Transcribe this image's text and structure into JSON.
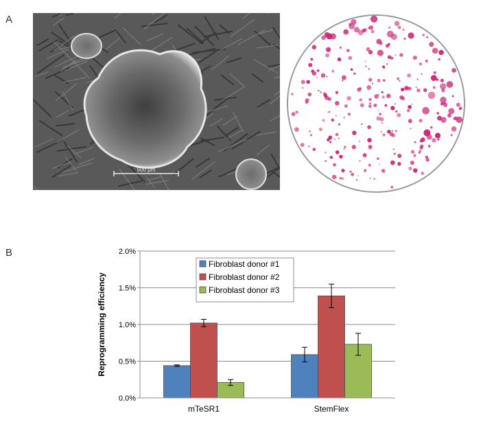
{
  "panels": {
    "a_label": "A",
    "b_label": "B",
    "scale_bar_text": "500 µm"
  },
  "colors": {
    "micrograph_bg": "#595959",
    "colony_stain": "#cc2a78",
    "series": [
      "#4f81bd",
      "#c0504d",
      "#9bbb59"
    ]
  },
  "chart_data": {
    "type": "bar",
    "categories": [
      "mTeSR1",
      "StemFlex"
    ],
    "series": [
      {
        "name": "Fibroblast donor #1",
        "values": [
          0.44,
          0.59
        ],
        "errors": [
          0.01,
          0.1
        ]
      },
      {
        "name": "Fibroblast donor #2",
        "values": [
          1.02,
          1.39
        ],
        "errors": [
          0.05,
          0.16
        ]
      },
      {
        "name": "Fibroblast donor #3",
        "values": [
          0.21,
          0.73
        ],
        "errors": [
          0.04,
          0.15
        ]
      }
    ],
    "ylabel": "Reprogramming efficiency",
    "xlabel": "",
    "ylim": [
      0,
      2.0
    ],
    "yticks": [
      0,
      0.5,
      1.0,
      1.5,
      2.0
    ],
    "ytick_labels": [
      "0.0%",
      "0.5%",
      "1.0%",
      "1.5%",
      "2.0%"
    ],
    "grid": true,
    "legend_position": "top-center"
  }
}
